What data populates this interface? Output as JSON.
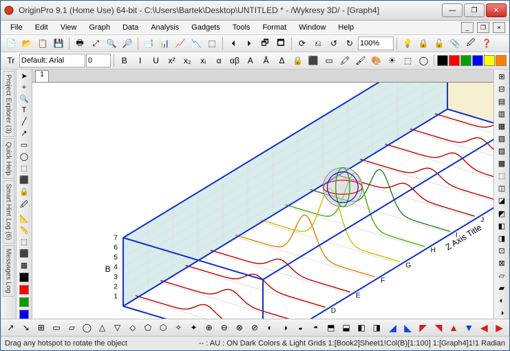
{
  "window": {
    "title": "OriginPro 9.1 (Home Use) 64-bit - C:\\Users\\Bartek\\Desktop\\UNTITLED * - /Wykresy 3D/ - [Graph4]",
    "minimize_glyph": "—",
    "maximize_glyph": "❐",
    "close_glyph": "✕"
  },
  "menu": {
    "items": [
      "File",
      "Edit",
      "View",
      "Graph",
      "Data",
      "Analysis",
      "Gadgets",
      "Tools",
      "Format",
      "Window",
      "Help"
    ]
  },
  "toolbars": {
    "row1_icons": [
      "📄",
      "📂",
      "📋",
      "💾",
      "🖶",
      "⤢",
      "🔍",
      "🔎",
      "📑",
      "📊",
      "📈",
      "📉",
      "⬚",
      "🞀",
      "🞂",
      "🗗",
      "🗖",
      "⟳",
      "⎌",
      "↺",
      "↻"
    ],
    "zoom_value": "100%",
    "row1_tail": [
      "💡",
      "🔒",
      "🔓",
      "📎",
      "🖉",
      "❓"
    ],
    "font_prefix_label": "Tr",
    "font_name": "Default: Arial",
    "font_size": "0",
    "format_btns": [
      "B",
      "I",
      "U",
      "x²",
      "x₂",
      "xᵢ",
      "α",
      "αβ",
      "A",
      "Å",
      "Δ",
      "🔒",
      "⬛",
      "▭",
      "🖍",
      "🖌",
      "🎨",
      "☀",
      "⬚",
      "◯"
    ],
    "color_swatches": [
      "#000000",
      "#ff0000",
      "#00a000",
      "#0000ff",
      "#ffff00",
      "#ff8000"
    ]
  },
  "left_panel": {
    "tabs": [
      "Project Explorer (3)",
      "Quick Help",
      "Smart Hint Log (6)",
      "Messages Log"
    ],
    "tools": [
      "➤",
      "+",
      "🔍",
      "T",
      "╱",
      "↗",
      "▭",
      "◯",
      "⬚",
      "⬛",
      "🔒",
      "🖉",
      "📐",
      "📏",
      "⬚",
      "⬛",
      "▦"
    ],
    "palette_colors": [
      "#000000",
      "#ff0000",
      "#00a000",
      "#0000ff",
      "#ff8000",
      "#808080"
    ]
  },
  "right_panel": {
    "tools": [
      "⊞",
      "⊟",
      "▤",
      "▥",
      "▦",
      "▧",
      "▨",
      "▩",
      "⬚",
      "◫",
      "◪",
      "◩",
      "◧",
      "◨",
      "⊡",
      "⊠",
      "▱",
      "▰",
      "◐",
      "◑"
    ]
  },
  "document": {
    "tab_label": "1"
  },
  "chart": {
    "x_axis_label": "A",
    "y_axis_label": "B",
    "z_axis_label": "Z Axis Title",
    "x_ticks": [
      20,
      40,
      60,
      80,
      100
    ],
    "y_ticks": [
      1,
      2,
      3,
      4,
      5,
      6,
      7
    ],
    "z_categories": [
      "B",
      "C",
      "D",
      "E",
      "F",
      "G",
      "H",
      "I",
      "J",
      "K",
      "L",
      "M",
      "N"
    ],
    "box_color": "#1030d0",
    "backwall_fill": "#d8ecec",
    "floorwall_fill": "#f6f0d0",
    "grid_color": "#e0e0e0",
    "series_colors": [
      "#c00000",
      "#c00000",
      "#c00000",
      "#c00000",
      "#e08000",
      "#d0c000",
      "#40b000",
      "#208020",
      "#c00000",
      "#c00000",
      "#c00000",
      "#c00000",
      "#c00000"
    ],
    "gizmo": {
      "x_color": "#d02020",
      "y_color": "#20a020",
      "z_color": "#2020d0",
      "sphere": "#d0d0d0"
    }
  },
  "bottom_toolbar": {
    "icons_left": [
      "↗",
      "↘",
      "⊞",
      "▭",
      "▱",
      "◯",
      "△",
      "▽",
      "◇",
      "⬠",
      "⬡",
      "✧",
      "✦",
      "⊕",
      "⊖",
      "⊗",
      "⊘",
      "◐",
      "◑",
      "◒",
      "◓",
      "⬒",
      "⬓",
      "◧",
      "◨"
    ],
    "icons_right_glyphs": [
      "◢",
      "◣",
      "◤",
      "◥",
      "▲",
      "▼",
      "◀",
      "▶"
    ],
    "icons_right_colors": [
      "#1040e0",
      "#1040e0",
      "#d02020",
      "#d02020",
      "#d02020",
      "#1040e0",
      "#d02020",
      "#d02020"
    ]
  },
  "status": {
    "left": "Drag any hotspot to rotate the object",
    "right": "-- : AU : ON   Dark Colors & Light Grids   1:[Book2]Sheet1!Col(B)[1:100]   1:[Graph4]1!1   Radian"
  }
}
